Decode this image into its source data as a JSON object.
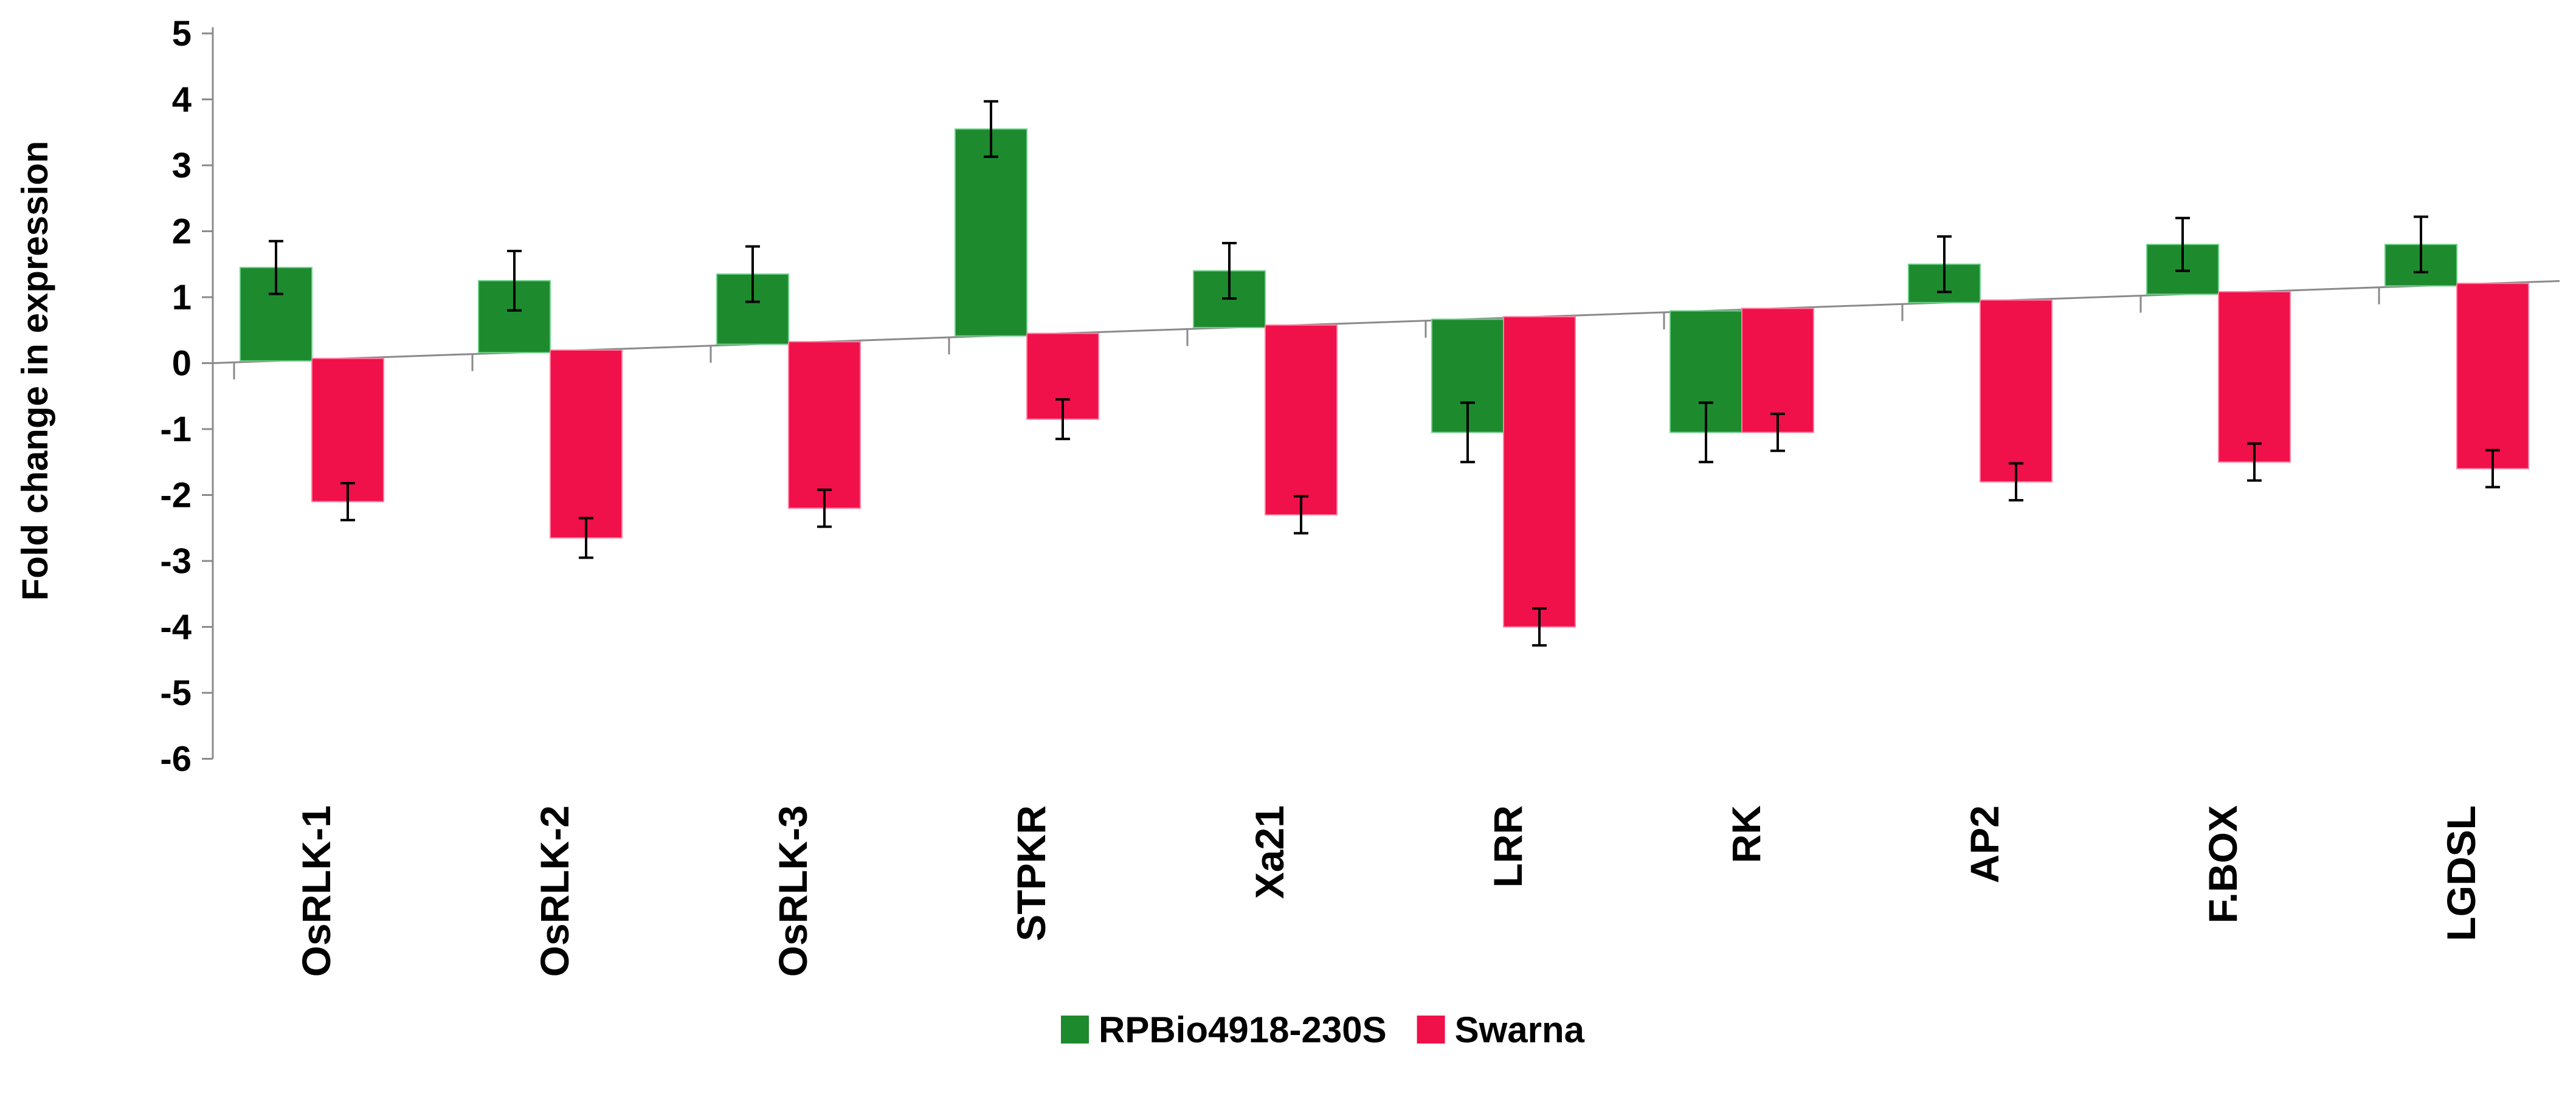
{
  "chart_data": {
    "type": "bar",
    "title": "",
    "xlabel": "",
    "ylabel": "Fold change in expression",
    "ylim": [
      -6,
      5
    ],
    "yticks": [
      5,
      4,
      3,
      2,
      1,
      0,
      -1,
      -2,
      -3,
      -4,
      -5,
      -6
    ],
    "categories": [
      "OsRLK-1",
      "OsRLK-2",
      "OsRLK-3",
      "STPKR",
      "Xa21",
      "LRR",
      "RK",
      "AP2",
      "F.BOX",
      "LGDSL"
    ],
    "series": [
      {
        "name": "RPBio4918-230S",
        "color": "#1e8a2e",
        "values": [
          1.45,
          1.25,
          1.35,
          3.55,
          1.4,
          -1.05,
          -1.05,
          1.5,
          1.8,
          1.8
        ],
        "errors": [
          0.4,
          0.45,
          0.42,
          0.42,
          0.42,
          0.45,
          0.45,
          0.42,
          0.4,
          0.42
        ]
      },
      {
        "name": "Swarna",
        "color": "#f0104a",
        "values": [
          -2.1,
          -2.65,
          -2.2,
          -0.85,
          -2.3,
          -4.0,
          -1.05,
          -1.8,
          -1.5,
          -1.6
        ],
        "errors": [
          0.28,
          0.3,
          0.28,
          0.3,
          0.28,
          0.28,
          0.28,
          0.28,
          0.28,
          0.28
        ]
      }
    ],
    "grid": false,
    "legend_position": "bottom-center"
  }
}
